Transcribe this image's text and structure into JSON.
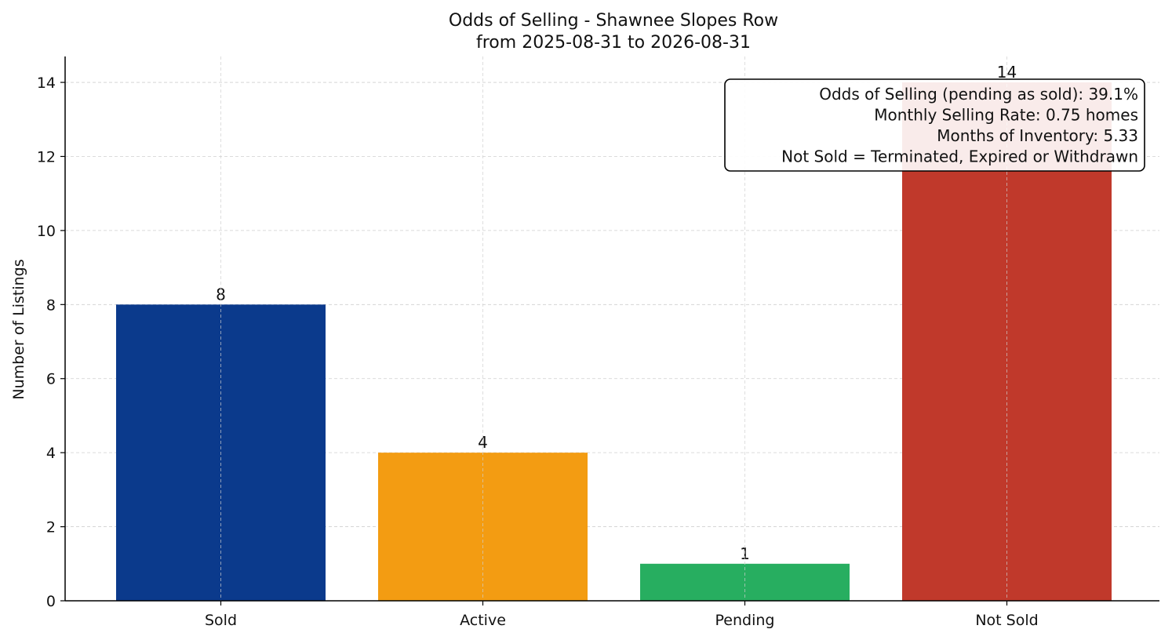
{
  "chart_data": {
    "type": "bar",
    "title": "Odds of Selling - Shawnee Slopes Row",
    "subtitle": "from 2025-08-31 to 2026-08-31",
    "xlabel": "",
    "ylabel": "Number of Listings",
    "categories": [
      "Sold",
      "Active",
      "Pending",
      "Not Sold"
    ],
    "values": [
      8,
      4,
      1,
      14
    ],
    "data_labels": [
      "8",
      "4",
      "1",
      "14"
    ],
    "colors": [
      "#0b3a8c",
      "#f39c12",
      "#27ae60",
      "#c0392b"
    ],
    "ylim": [
      0,
      14.7
    ],
    "yticks": [
      0,
      2,
      4,
      6,
      8,
      10,
      12,
      14
    ],
    "grid": true,
    "legend": "none",
    "annotation": {
      "placement": "top-right",
      "lines": [
        "Odds of Selling (pending as sold): 39.1%",
        "Monthly Selling Rate: 0.75 homes",
        "Months of Inventory: 5.33",
        "Not Sold = Terminated, Expired or Withdrawn"
      ]
    }
  }
}
